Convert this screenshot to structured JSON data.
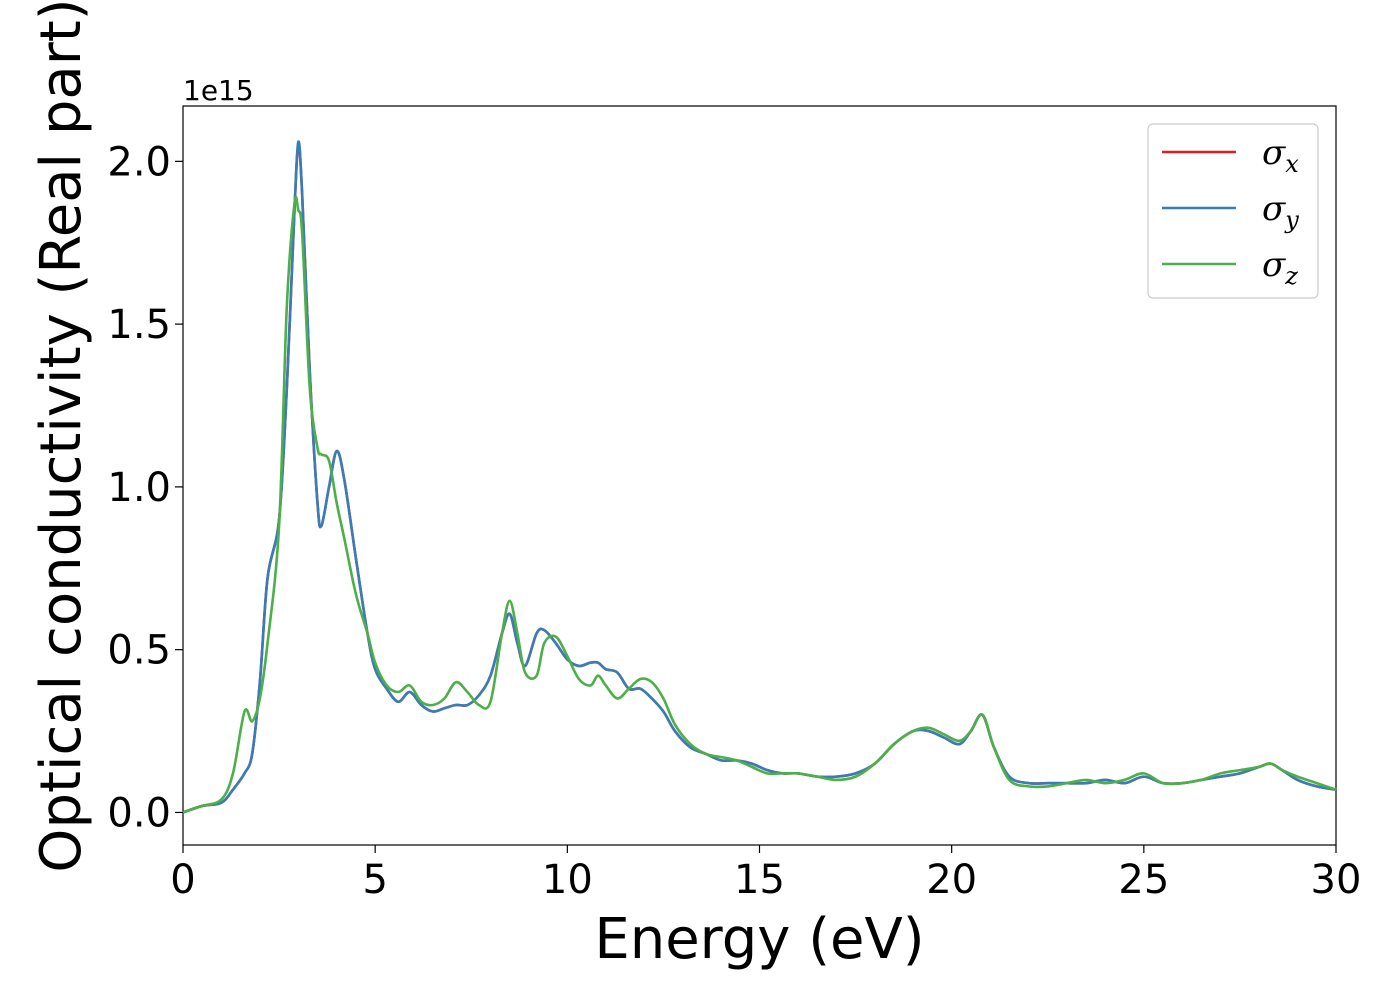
{
  "chart_data": {
    "type": "line",
    "title": "",
    "xlabel": "Energy (eV)",
    "ylabel": "Optical conductivity (Real part)",
    "y_offset_label": "1e15",
    "xlim": [
      0,
      30
    ],
    "ylim": [
      -0.1,
      2.17
    ],
    "x_ticks": [
      0,
      5,
      10,
      15,
      20,
      25,
      30
    ],
    "x_tick_labels": [
      "0",
      "5",
      "10",
      "15",
      "20",
      "25",
      "30"
    ],
    "y_ticks": [
      0.0,
      0.5,
      1.0,
      1.5,
      2.0
    ],
    "y_tick_labels": [
      "0.0",
      "0.5",
      "1.0",
      "1.5",
      "2.0"
    ],
    "grid": false,
    "legend_position": "top-right",
    "x": [
      0,
      0.5,
      1.0,
      1.3,
      1.6,
      1.8,
      2.0,
      2.2,
      2.5,
      2.7,
      2.9,
      3.0,
      3.1,
      3.3,
      3.5,
      3.6,
      3.8,
      4.0,
      4.2,
      4.5,
      4.8,
      5.0,
      5.3,
      5.6,
      5.9,
      6.2,
      6.5,
      6.8,
      7.1,
      7.4,
      7.7,
      8.0,
      8.3,
      8.5,
      8.7,
      8.9,
      9.2,
      9.4,
      9.7,
      10.0,
      10.3,
      10.6,
      10.8,
      11.0,
      11.3,
      11.6,
      11.9,
      12.2,
      12.5,
      12.8,
      13.2,
      13.6,
      14.0,
      14.4,
      14.8,
      15.2,
      15.6,
      16.0,
      16.5,
      17.0,
      17.5,
      18.0,
      18.5,
      19.0,
      19.4,
      19.8,
      20.2,
      20.5,
      20.8,
      21.1,
      21.5,
      22.0,
      22.5,
      23.0,
      23.5,
      24.0,
      24.5,
      25.0,
      25.5,
      26.0,
      26.5,
      27.0,
      27.5,
      28.0,
      28.3,
      28.6,
      29.0,
      29.5,
      30.0
    ],
    "series": [
      {
        "name": "x",
        "color": "#e41a1c",
        "values": [
          0.0,
          0.02,
          0.03,
          0.07,
          0.12,
          0.18,
          0.4,
          0.72,
          0.9,
          1.3,
          1.85,
          2.05,
          1.9,
          1.35,
          0.95,
          0.88,
          1.0,
          1.11,
          1.02,
          0.78,
          0.55,
          0.44,
          0.38,
          0.34,
          0.37,
          0.33,
          0.31,
          0.32,
          0.33,
          0.33,
          0.36,
          0.42,
          0.55,
          0.61,
          0.52,
          0.45,
          0.55,
          0.56,
          0.52,
          0.47,
          0.45,
          0.46,
          0.46,
          0.44,
          0.43,
          0.38,
          0.38,
          0.35,
          0.31,
          0.25,
          0.2,
          0.18,
          0.16,
          0.16,
          0.15,
          0.13,
          0.12,
          0.12,
          0.11,
          0.11,
          0.12,
          0.15,
          0.21,
          0.25,
          0.25,
          0.23,
          0.21,
          0.25,
          0.3,
          0.2,
          0.11,
          0.09,
          0.09,
          0.09,
          0.09,
          0.1,
          0.09,
          0.11,
          0.09,
          0.09,
          0.1,
          0.11,
          0.12,
          0.14,
          0.15,
          0.13,
          0.1,
          0.08,
          0.07
        ]
      },
      {
        "name": "y",
        "color": "#377eb8",
        "values": [
          0.0,
          0.02,
          0.03,
          0.07,
          0.12,
          0.18,
          0.4,
          0.72,
          0.9,
          1.3,
          1.85,
          2.06,
          1.9,
          1.35,
          0.95,
          0.88,
          1.0,
          1.11,
          1.02,
          0.78,
          0.55,
          0.44,
          0.38,
          0.34,
          0.37,
          0.33,
          0.31,
          0.32,
          0.33,
          0.33,
          0.36,
          0.42,
          0.55,
          0.61,
          0.52,
          0.45,
          0.55,
          0.56,
          0.52,
          0.47,
          0.45,
          0.46,
          0.46,
          0.44,
          0.43,
          0.38,
          0.38,
          0.35,
          0.31,
          0.25,
          0.2,
          0.18,
          0.16,
          0.16,
          0.15,
          0.13,
          0.12,
          0.12,
          0.11,
          0.11,
          0.12,
          0.15,
          0.21,
          0.25,
          0.25,
          0.23,
          0.21,
          0.25,
          0.3,
          0.2,
          0.11,
          0.09,
          0.09,
          0.09,
          0.09,
          0.1,
          0.09,
          0.11,
          0.09,
          0.09,
          0.1,
          0.11,
          0.12,
          0.14,
          0.15,
          0.13,
          0.1,
          0.08,
          0.07
        ]
      },
      {
        "name": "z",
        "color": "#4daf4a",
        "values": [
          0.0,
          0.02,
          0.04,
          0.12,
          0.31,
          0.28,
          0.35,
          0.52,
          0.88,
          1.55,
          1.87,
          1.85,
          1.78,
          1.3,
          1.12,
          1.1,
          1.08,
          0.95,
          0.84,
          0.67,
          0.55,
          0.46,
          0.39,
          0.37,
          0.39,
          0.34,
          0.33,
          0.35,
          0.4,
          0.37,
          0.33,
          0.34,
          0.55,
          0.65,
          0.55,
          0.43,
          0.42,
          0.52,
          0.54,
          0.48,
          0.41,
          0.39,
          0.42,
          0.39,
          0.35,
          0.38,
          0.41,
          0.4,
          0.35,
          0.27,
          0.21,
          0.18,
          0.17,
          0.16,
          0.14,
          0.12,
          0.12,
          0.12,
          0.11,
          0.1,
          0.11,
          0.15,
          0.21,
          0.25,
          0.26,
          0.24,
          0.22,
          0.25,
          0.3,
          0.2,
          0.1,
          0.08,
          0.08,
          0.09,
          0.1,
          0.09,
          0.1,
          0.12,
          0.09,
          0.09,
          0.1,
          0.12,
          0.13,
          0.14,
          0.15,
          0.13,
          0.11,
          0.09,
          0.07
        ]
      }
    ]
  }
}
